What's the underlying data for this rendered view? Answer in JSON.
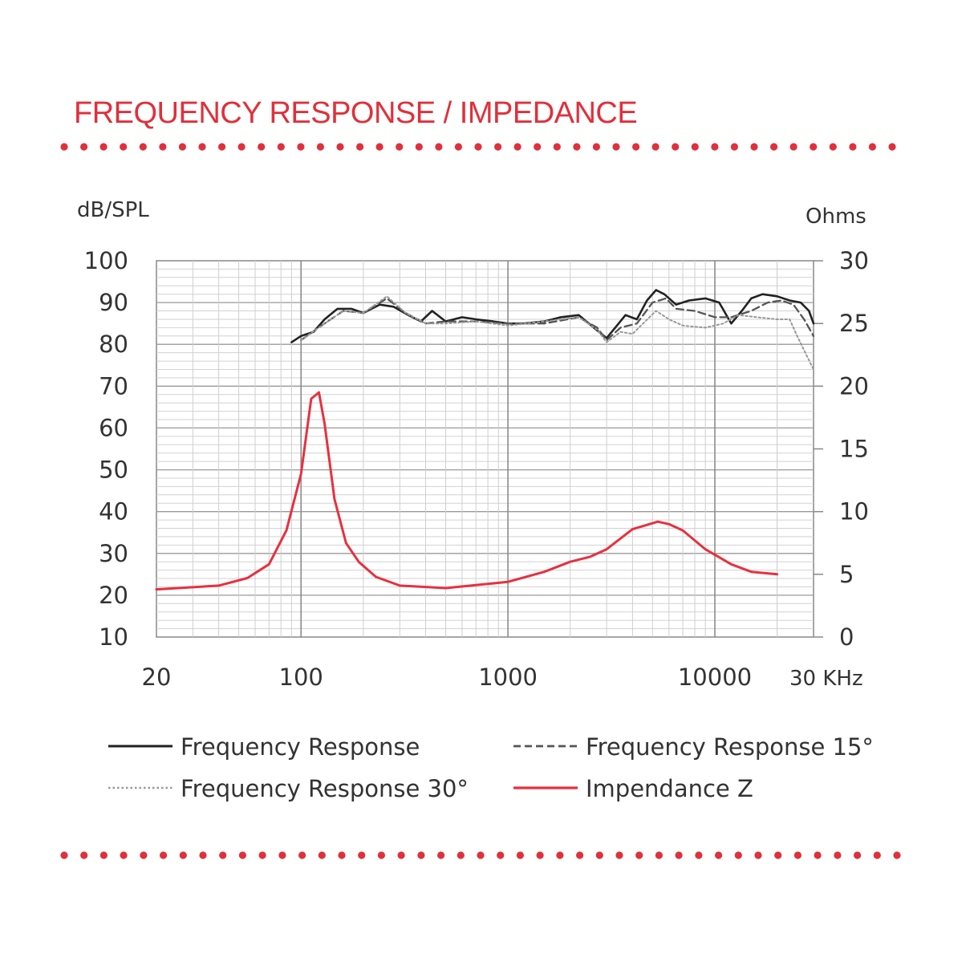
{
  "title": "FREQUENCY RESPONSE / IMPEDANCE",
  "chart_data": {
    "type": "line",
    "xscale": "log",
    "xlim": [
      20,
      30000
    ],
    "grid": true,
    "left_axis": {
      "label": "dB/SPL",
      "range": [
        10,
        100
      ],
      "ticks": [
        "100",
        "90",
        "80",
        "70",
        "60",
        "50",
        "40",
        "30",
        "20",
        "10"
      ]
    },
    "right_axis": {
      "label": "Ohms",
      "range": [
        0,
        30
      ],
      "ticks": [
        "30",
        "25",
        "20",
        "15",
        "10",
        "5",
        "0"
      ]
    },
    "x_ticks": [
      {
        "value": 20,
        "label": "20"
      },
      {
        "value": 100,
        "label": "100"
      },
      {
        "value": 1000,
        "label": "1000"
      },
      {
        "value": 10000,
        "label": "10000"
      },
      {
        "value": 30000,
        "label": "30 KHz"
      }
    ],
    "legend_position": "bottom",
    "series": [
      {
        "name": "Frequency Response",
        "axis": "left",
        "style": "solid",
        "color": "#222222",
        "points": [
          [
            90,
            80.5
          ],
          [
            100,
            82
          ],
          [
            115,
            83
          ],
          [
            130,
            86
          ],
          [
            150,
            88.5
          ],
          [
            175,
            88.5
          ],
          [
            200,
            87.5
          ],
          [
            240,
            89.5
          ],
          [
            280,
            89
          ],
          [
            330,
            87
          ],
          [
            380,
            85.5
          ],
          [
            430,
            88
          ],
          [
            500,
            85.5
          ],
          [
            600,
            86.5
          ],
          [
            700,
            86
          ],
          [
            850,
            85.5
          ],
          [
            1000,
            85
          ],
          [
            1200,
            85
          ],
          [
            1500,
            85.5
          ],
          [
            1800,
            86.5
          ],
          [
            2200,
            87
          ],
          [
            2600,
            84
          ],
          [
            3000,
            81.5
          ],
          [
            3300,
            84
          ],
          [
            3700,
            87
          ],
          [
            4200,
            86
          ],
          [
            4700,
            90.5
          ],
          [
            5200,
            93
          ],
          [
            5700,
            92
          ],
          [
            6500,
            89.5
          ],
          [
            7500,
            90.5
          ],
          [
            9000,
            91
          ],
          [
            10500,
            90
          ],
          [
            12000,
            85
          ],
          [
            13500,
            88
          ],
          [
            15000,
            91
          ],
          [
            17000,
            92
          ],
          [
            20000,
            91.5
          ],
          [
            23000,
            90.5
          ],
          [
            26000,
            90
          ],
          [
            28500,
            88
          ],
          [
            30000,
            85
          ]
        ]
      },
      {
        "name": "Frequency Response 15°",
        "axis": "left",
        "style": "dashed",
        "color": "#555555",
        "points": [
          [
            100,
            81
          ],
          [
            130,
            85
          ],
          [
            160,
            88
          ],
          [
            200,
            87.5
          ],
          [
            260,
            91
          ],
          [
            320,
            87.5
          ],
          [
            400,
            85
          ],
          [
            500,
            85.5
          ],
          [
            700,
            85.5
          ],
          [
            1000,
            85
          ],
          [
            1500,
            85
          ],
          [
            2200,
            86.5
          ],
          [
            2700,
            84
          ],
          [
            3000,
            81
          ],
          [
            3500,
            84
          ],
          [
            4200,
            85
          ],
          [
            5000,
            90
          ],
          [
            5800,
            91
          ],
          [
            6500,
            88.5
          ],
          [
            8000,
            88
          ],
          [
            10000,
            86.5
          ],
          [
            12000,
            86.5
          ],
          [
            15000,
            88
          ],
          [
            18000,
            90
          ],
          [
            21000,
            90.5
          ],
          [
            24000,
            89.5
          ],
          [
            27000,
            86
          ],
          [
            30000,
            82
          ]
        ]
      },
      {
        "name": "Frequency Response 30°",
        "axis": "left",
        "style": "dotted",
        "color": "#999999",
        "points": [
          [
            100,
            81
          ],
          [
            130,
            85
          ],
          [
            160,
            88
          ],
          [
            200,
            87.5
          ],
          [
            260,
            91.5
          ],
          [
            320,
            87.5
          ],
          [
            400,
            85
          ],
          [
            500,
            85
          ],
          [
            700,
            85.5
          ],
          [
            1000,
            84.5
          ],
          [
            1500,
            85.5
          ],
          [
            2200,
            86.5
          ],
          [
            2700,
            83.5
          ],
          [
            3000,
            80.5
          ],
          [
            3500,
            83
          ],
          [
            4000,
            82.5
          ],
          [
            4500,
            85
          ],
          [
            5200,
            88
          ],
          [
            6000,
            86
          ],
          [
            7000,
            84.5
          ],
          [
            9000,
            84
          ],
          [
            11000,
            85
          ],
          [
            13000,
            87
          ],
          [
            16000,
            86.5
          ],
          [
            20000,
            86
          ],
          [
            23000,
            86
          ],
          [
            25000,
            82
          ],
          [
            28000,
            77
          ],
          [
            30000,
            74
          ]
        ]
      },
      {
        "name": "Impendance Z",
        "axis": "right",
        "style": "solid",
        "color": "#e8303f",
        "points": [
          [
            20,
            3.8
          ],
          [
            40,
            4.1
          ],
          [
            55,
            4.7
          ],
          [
            70,
            5.8
          ],
          [
            85,
            8.5
          ],
          [
            100,
            13
          ],
          [
            112,
            19
          ],
          [
            122,
            19.5
          ],
          [
            130,
            17
          ],
          [
            145,
            11
          ],
          [
            165,
            7.5
          ],
          [
            190,
            6
          ],
          [
            230,
            4.8
          ],
          [
            300,
            4.1
          ],
          [
            500,
            3.9
          ],
          [
            1000,
            4.4
          ],
          [
            1500,
            5.2
          ],
          [
            2000,
            6
          ],
          [
            2500,
            6.4
          ],
          [
            3000,
            7
          ],
          [
            4000,
            8.6
          ],
          [
            5300,
            9.2
          ],
          [
            6000,
            9.0
          ],
          [
            7000,
            8.5
          ],
          [
            9000,
            7
          ],
          [
            12000,
            5.8
          ],
          [
            15000,
            5.2
          ],
          [
            20000,
            5
          ]
        ]
      }
    ]
  }
}
